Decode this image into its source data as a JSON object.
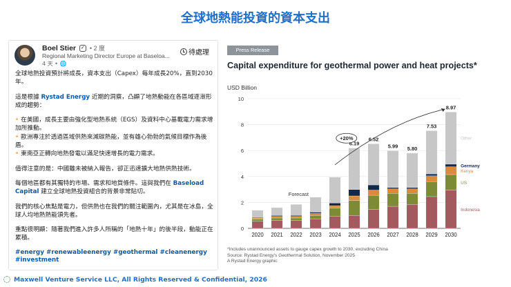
{
  "slide": {
    "title": "全球地熱能投資的資本支出"
  },
  "post": {
    "author": "Boel Stier",
    "verified_mark": "✓",
    "degree": "• 2 度",
    "role": "Regional Marketing Director Europe at Baseloa...",
    "meta": "4 天 • ",
    "globe_glyph": "🌐",
    "follow_label": "待處理",
    "paragraphs": {
      "p1": "全球地熱投資預計將成長，資本支出（Capex）每年成長20%，直到2030年。",
      "p2_pre": "這是根據 ",
      "p2_link": "Rystad Energy",
      "p2_post": " 近期的洞察，凸顯了地熱動能在各區域逐漸形成的趨勢：",
      "b1": "在美國，成長主要由強化型地熱系統（EGS）及資料中心基載電力需求增加所推動。",
      "b2": "歐洲專注於透過區域供熱來減碳熱能，並有雄心勃勃的氣候目標作為後盾。",
      "b3": "東南亞正轉向地熱發電以滿足快速增長的電力需求。",
      "p3": "值得注意的是：中國雖未被納入報告，卻正迅速擴大地熱供熱技術。",
      "p4_pre": "每個地區都有其獨特的市場、需求和地質條件。這與我們在 ",
      "p4_link": "Baseload Capital",
      "p4_post": " 建立全球地熱投資組合的背景非常貼切。",
      "p5": "我們的核心焦點是電力，但供熱也在我們的關注範圍內，尤其是在冰島，全球人均地熱熱能領先者。",
      "p6": "重點很明顯：隨著我們進入許多人所稱的「地熱十年」的後半段，動能正在累積。"
    },
    "hashtags_line1": "#energy #renewableenergy #geothermal #cleanenergy",
    "hashtags_line2": "#investment"
  },
  "press": {
    "badge": "Press Release",
    "title": "Capital expenditure for geothermal power and heat projects*",
    "unit": "USD Billion",
    "footnote1": "*Includes unannounced assets to gauge capex growth to 2030, excluding China",
    "footnote2": "Source: Rystad Energy's Geothermal Solution, November 2025",
    "footnote3": "A Rystad Energy graphic"
  },
  "chart_data": {
    "type": "bar",
    "stacked": true,
    "title": "Capital expenditure for geothermal power and heat projects*",
    "ylabel": "USD Billion",
    "ylim": [
      0,
      10
    ],
    "yticks": [
      0,
      2,
      4,
      6,
      8,
      10
    ],
    "categories": [
      "2020",
      "2021",
      "2022",
      "2023",
      "2024",
      "2025",
      "2026",
      "2027",
      "2028",
      "2029",
      "2030"
    ],
    "totals": [
      1.4,
      1.6,
      1.85,
      2.4,
      3.95,
      6.19,
      6.52,
      5.99,
      5.8,
      7.53,
      8.97
    ],
    "total_labels": {
      "2025": "6.19",
      "2026": "6.52",
      "2027": "5.99",
      "2028": "5.80",
      "2029": "7.53",
      "2030": "8.97"
    },
    "series": [
      {
        "name": "Indonesia",
        "color": "#a35a5e",
        "values": [
          0.55,
          0.6,
          0.6,
          0.7,
          0.95,
          1.0,
          1.45,
          1.7,
          1.85,
          2.45,
          2.95
        ]
      },
      {
        "name": "US",
        "color": "#7d8a36",
        "values": [
          0.15,
          0.2,
          0.2,
          0.3,
          0.6,
          1.15,
          1.1,
          1.0,
          0.85,
          1.15,
          1.2
        ]
      },
      {
        "name": "Kenya",
        "color": "#d98a3a",
        "values": [
          0.1,
          0.12,
          0.12,
          0.15,
          0.2,
          0.35,
          0.4,
          0.35,
          0.35,
          0.45,
          0.6
        ]
      },
      {
        "name": "Germany",
        "color": "#13294b",
        "values": [
          0.05,
          0.07,
          0.08,
          0.1,
          0.2,
          0.5,
          0.4,
          0.1,
          0.1,
          0.15,
          0.2
        ]
      },
      {
        "name": "Other",
        "color": "#c7c7c7",
        "values": [
          0.55,
          0.61,
          0.85,
          1.15,
          2.0,
          3.19,
          3.17,
          2.84,
          2.65,
          3.33,
          4.02
        ]
      }
    ],
    "forecast_label": "Forecast",
    "growth_annotation": "+20%"
  },
  "footer": {
    "text": "Maxwell Venture Service LLC, All Rights Reserved & Confidential, 2026"
  },
  "colors": {
    "title": "#1f6fc8",
    "link": "#0a5aa8",
    "bullet": "#e9a23b"
  }
}
